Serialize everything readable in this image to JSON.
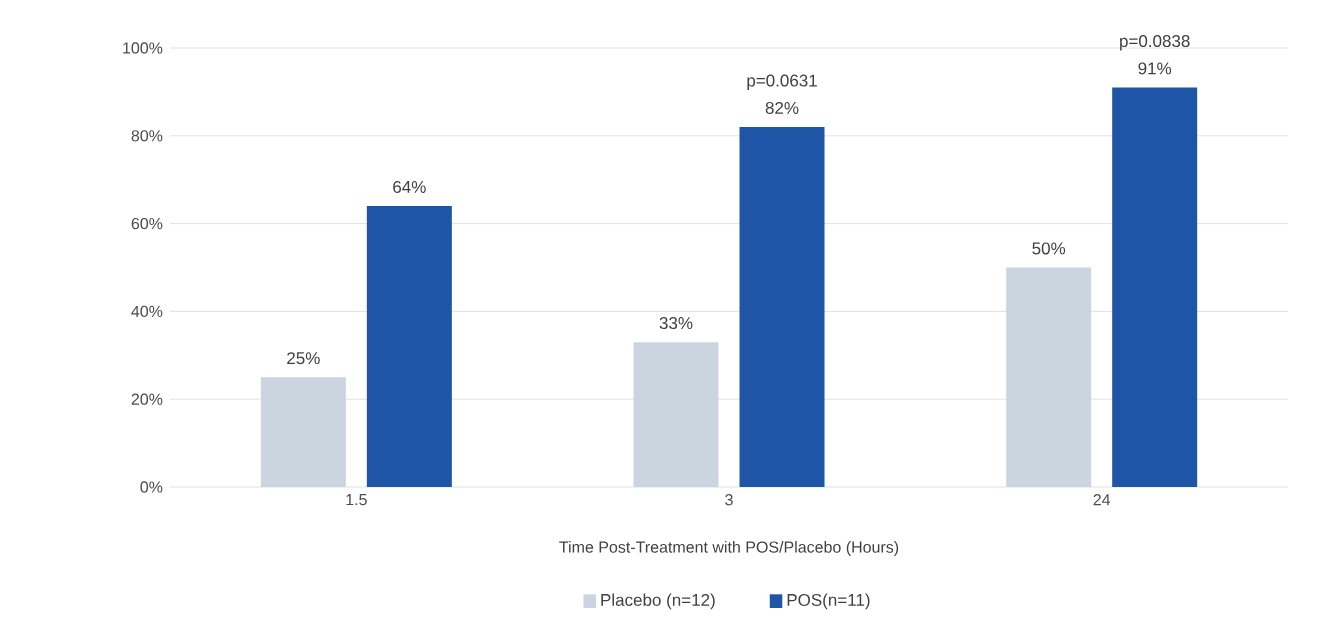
{
  "chart_data": {
    "type": "bar",
    "xlabel": "Time Post-Treatment with POS/Placebo (Hours)",
    "categories": [
      "1.5",
      "3",
      "24"
    ],
    "series": [
      {
        "name": "Placebo (n=12)",
        "color": "#cbd5e0",
        "values": [
          25,
          33,
          50
        ],
        "value_labels": [
          "25%",
          "33%",
          "50%"
        ]
      },
      {
        "name": "POS(n=11)",
        "color": "#1f55a6",
        "values": [
          64,
          82,
          91
        ],
        "value_labels": [
          "64%",
          "82%",
          "91%"
        ]
      }
    ],
    "ylim": [
      0,
      100
    ],
    "yticks": [
      {
        "value": 0,
        "label": "0%"
      },
      {
        "value": 20,
        "label": "20%"
      },
      {
        "value": 40,
        "label": "40%"
      },
      {
        "value": 60,
        "label": "60%"
      },
      {
        "value": 80,
        "label": "80%"
      },
      {
        "value": 100,
        "label": "100%"
      }
    ],
    "grid": "y",
    "legend": "bottom",
    "annotations": [
      "p=0.0631",
      "p=0.0838"
    ]
  }
}
